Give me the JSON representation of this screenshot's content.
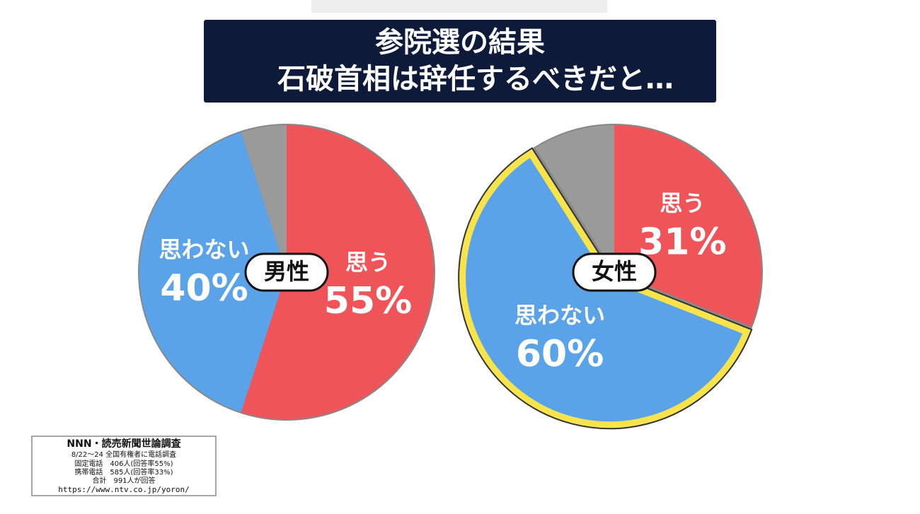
{
  "header": {
    "title_lines": [
      "参院選の結果",
      "石破首相は辞任するべきだと…"
    ]
  },
  "chart_data": [
    {
      "type": "pie",
      "name": "男性",
      "categories": [
        "思う",
        "思わない",
        null
      ],
      "values": [
        55,
        40,
        5
      ],
      "value_labels": [
        "55%",
        "40%",
        null
      ],
      "colors": [
        "#ef5558",
        "#5aa3e8",
        "#9a9a9a"
      ]
    },
    {
      "type": "pie",
      "name": "女性",
      "categories": [
        "思う",
        "思わない",
        null
      ],
      "values": [
        31,
        60,
        9
      ],
      "value_labels": [
        "31%",
        "60%",
        null
      ],
      "colors": [
        "#ef5558",
        "#5aa3e8",
        "#9a9a9a"
      ],
      "highlight": 1
    }
  ],
  "source": {
    "lines": [
      "NNN・読売新聞世論調査",
      "8/22〜24 全国有権者に電話調査",
      "固定電話　406人(回答率55%)",
      "携帯電話　585人(回答率33%)",
      "合計　991人が回答",
      "https://www.ntv.co.jp/yoron/"
    ]
  }
}
